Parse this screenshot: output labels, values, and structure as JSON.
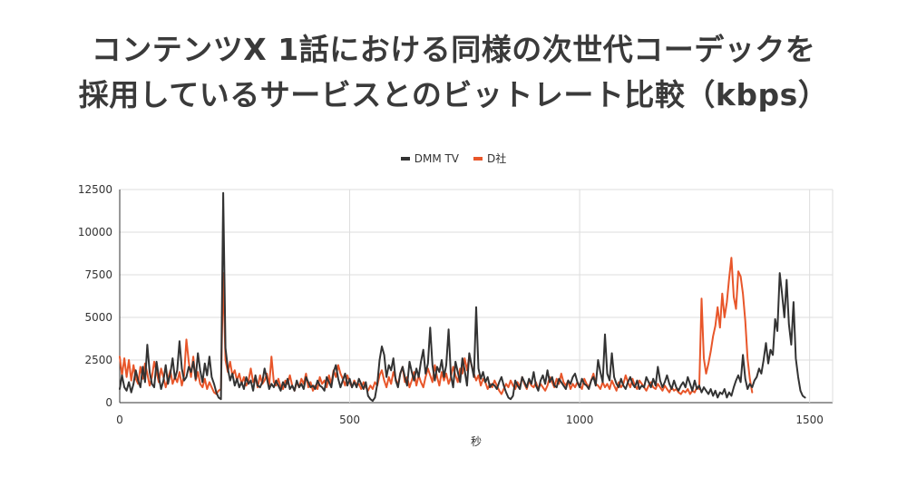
{
  "title_line1": "コンテンツX 1話における同様の次世代コーデックを",
  "title_line2": "採用しているサービスとのビットレート比較（kbps）",
  "chart_data": {
    "type": "line",
    "xlabel": "秒",
    "ylabel": "",
    "xlim": [
      0,
      1550
    ],
    "ylim": [
      0,
      12500
    ],
    "x_ticks": [
      0,
      500,
      1000,
      1500
    ],
    "y_ticks": [
      0,
      2500,
      5000,
      7500,
      10000,
      12500
    ],
    "grid": true,
    "legend_position": "top-center",
    "x_step": 5,
    "series": [
      {
        "name": "DMM TV",
        "color": "#333333",
        "values": [
          800,
          1600,
          900,
          700,
          1200,
          600,
          1100,
          1900,
          1300,
          900,
          2100,
          1200,
          3400,
          1800,
          1100,
          900,
          2400,
          1500,
          800,
          1300,
          2200,
          1100,
          1700,
          2600,
          1400,
          1900,
          3600,
          2000,
          1300,
          1500,
          2100,
          1800,
          2400,
          1400,
          2900,
          1900,
          1200,
          2300,
          1600,
          2700,
          1500,
          1100,
          600,
          300,
          200,
          12300,
          3200,
          2000,
          1300,
          1700,
          1000,
          1400,
          900,
          1200,
          800,
          1500,
          1100,
          1300,
          700,
          1600,
          1000,
          900,
          1200,
          2000,
          1400,
          800,
          1100,
          900,
          1300,
          1000,
          700,
          1200,
          900,
          1400,
          800,
          1000,
          700,
          1300,
          900,
          1100,
          800,
          1500,
          1200,
          900,
          1000,
          800,
          1300,
          1000,
          900,
          700,
          1500,
          1200,
          900,
          1800,
          2200,
          1400,
          900,
          1300,
          1700,
          1000,
          1400,
          900,
          1200,
          900,
          1400,
          1100,
          800,
          1200,
          400,
          200,
          100,
          300,
          1100,
          2500,
          3300,
          2800,
          1500,
          2200,
          1900,
          2600,
          1300,
          900,
          1700,
          2100,
          1500,
          1000,
          2400,
          1800,
          1300,
          2000,
          1500,
          2400,
          3100,
          1700,
          2300,
          4400,
          2200,
          1300,
          2100,
          1800,
          2500,
          1500,
          2200,
          4300,
          1600,
          900,
          2400,
          1800,
          1200,
          2600,
          1900,
          1000,
          2900,
          2200,
          1500,
          5600,
          2000,
          1400,
          1800,
          1200,
          1500,
          900,
          1100,
          1000,
          800,
          1200,
          1500,
          1000,
          600,
          300,
          200,
          400,
          1300,
          1000,
          800,
          1500,
          1200,
          900,
          1400,
          1100,
          1800,
          1000,
          700,
          1300,
          1600,
          1100,
          1900,
          1200,
          1500,
          1000,
          900,
          1400,
          1200,
          1000,
          800,
          1300,
          1100,
          1500,
          1700,
          1200,
          900,
          1400,
          1100,
          1000,
          800,
          1300,
          1500,
          1000,
          2500,
          1800,
          1200,
          4000,
          1700,
          1300,
          2900,
          1500,
          1100,
          900,
          1400,
          1000,
          800,
          1200,
          1500,
          1100,
          900,
          1300,
          800,
          1000,
          900,
          1500,
          1200,
          900,
          1400,
          1000,
          2100,
          1300,
          900,
          1200,
          1600,
          1100,
          800,
          1300,
          900,
          700,
          1000,
          1200,
          900,
          1500,
          1100,
          700,
          1300,
          800,
          1000,
          600,
          900,
          700,
          500,
          800,
          400,
          700,
          300,
          600,
          500,
          800,
          300,
          600,
          400,
          900,
          1300,
          1600,
          1200,
          2800,
          1400,
          800,
          1100,
          900,
          1300,
          1500,
          2000,
          1700,
          2500,
          3500,
          2300,
          3100,
          2800,
          4900,
          4200,
          7600,
          6400,
          5000,
          7200,
          4600,
          3400,
          5900,
          2600,
          1500,
          700,
          400,
          300
        ]
      },
      {
        "name": "D社",
        "color": "#e8562a",
        "values": [
          2700,
          1600,
          2600,
          1500,
          2500,
          1300,
          2200,
          1400,
          1100,
          2100,
          1400,
          2300,
          1700,
          1000,
          1500,
          2400,
          1800,
          1200,
          2000,
          1500,
          900,
          1400,
          1900,
          1100,
          1500,
          1200,
          1800,
          1000,
          1600,
          3700,
          2400,
          1500,
          2700,
          1300,
          1800,
          1100,
          900,
          1400,
          800,
          1200,
          900,
          600,
          500,
          700,
          800,
          7600,
          2500,
          1800,
          2400,
          1600,
          1900,
          1300,
          1700,
          1100,
          1500,
          1000,
          1300,
          2000,
          1200,
          1500,
          900,
          1600,
          1100,
          1300,
          1700,
          1000,
          2700,
          1200,
          1000,
          1400,
          900,
          800,
          1300,
          1100,
          1600,
          1000,
          700,
          1200,
          900,
          1400,
          1100,
          1700,
          900,
          1200,
          700,
          1000,
          800,
          1500,
          1100,
          1300,
          900,
          1600,
          1100,
          1900,
          1500,
          2200,
          1700,
          1400,
          1000,
          1600,
          1200,
          900,
          1300,
          1000,
          1100,
          800,
          1200,
          900,
          700,
          1000,
          800,
          1200,
          1000,
          1600,
          1900,
          1300,
          900,
          1500,
          1100,
          1800,
          1400,
          1000,
          1700,
          2100,
          1200,
          1500,
          900,
          1300,
          1800,
          1000,
          1600,
          1200,
          900,
          1500,
          2000,
          1600,
          1200,
          2200,
          1500,
          1000,
          1800,
          1300,
          1700,
          1100,
          1500,
          2100,
          1600,
          1200,
          2000,
          1700,
          2600,
          1900,
          2700,
          2200,
          1700,
          1300,
          1600,
          1000,
          1400,
          1200,
          800,
          1100,
          900,
          1300,
          1000,
          700,
          500,
          800,
          1100,
          900,
          1300,
          1000,
          800,
          1200,
          900,
          1500,
          1100,
          800,
          1300,
          1000,
          900,
          1200,
          800,
          1100,
          900,
          700,
          1000,
          1500,
          1200,
          900,
          1400,
          1100,
          1700,
          1200,
          1000,
          1300,
          800,
          1100,
          900,
          1200,
          1000,
          800,
          1400,
          1100,
          900,
          1300,
          1700,
          1100,
          1000,
          800,
          1200,
          900,
          1100,
          800,
          1300,
          1000,
          700,
          1200,
          900,
          1100,
          1600,
          1200,
          900,
          1400,
          1000,
          800,
          1300,
          1100,
          900,
          700,
          1000,
          1200,
          900,
          800,
          1100,
          900,
          700,
          1000,
          800,
          600,
          900,
          700,
          800,
          600,
          500,
          700,
          600,
          800,
          500,
          700,
          600,
          900,
          800,
          6100,
          2600,
          1700,
          2300,
          3000,
          3900,
          4500,
          5600,
          4400,
          6400,
          5000,
          5900,
          7300,
          8500,
          6200,
          5500,
          7700,
          7400,
          6400,
          4800,
          2600,
          1400,
          600
        ]
      }
    ]
  }
}
